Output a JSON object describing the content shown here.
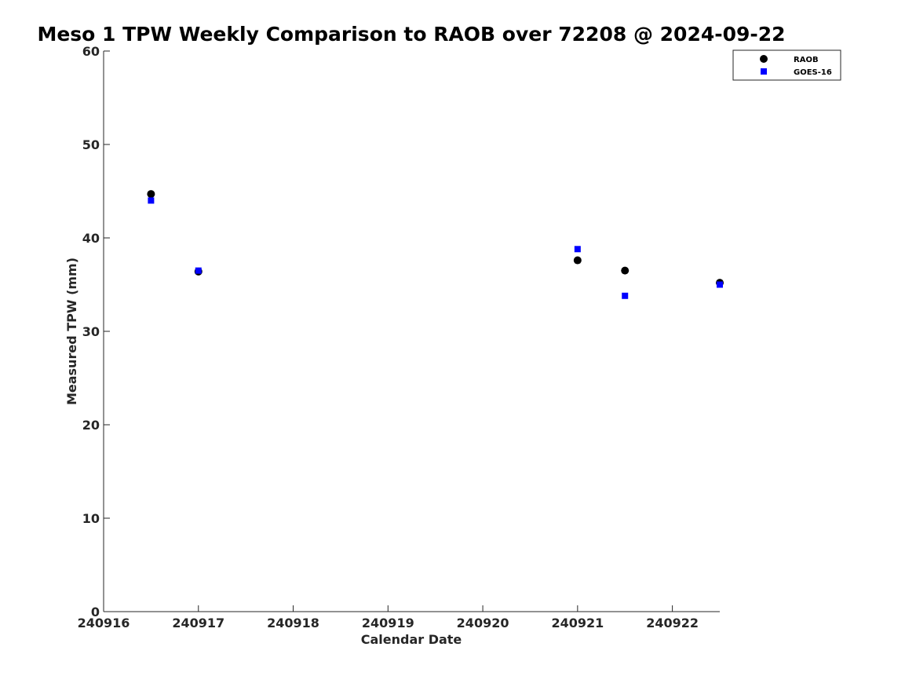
{
  "chart_data": {
    "type": "scatter",
    "title": "Meso 1 TPW Weekly Comparison to RAOB over 72208 @ 2024-09-22",
    "xlabel": "Calendar Date",
    "ylabel": "Measured TPW (mm)",
    "xlim": [
      "2024-09-16",
      "2024-09-22 12:00"
    ],
    "ylim": [
      0,
      60
    ],
    "x_ticks": [
      "240916",
      "240917",
      "240918",
      "240919",
      "240920",
      "240921",
      "240922"
    ],
    "y_ticks": [
      "0",
      "10",
      "20",
      "30",
      "40",
      "50",
      "60"
    ],
    "grid": false,
    "legend_position": "top-right",
    "series": [
      {
        "name": "RAOB",
        "marker": "circle",
        "color": "#000000",
        "x": [
          "2024-09-16 12:00",
          "2024-09-17 00:00",
          "2024-09-21 00:00",
          "2024-09-21 12:00",
          "2024-09-22 12:00"
        ],
        "y": [
          44.7,
          36.4,
          37.6,
          36.5,
          35.2
        ]
      },
      {
        "name": "GOES-16",
        "marker": "square",
        "color": "#0000ff",
        "x": [
          "2024-09-16 12:00",
          "2024-09-17 00:00",
          "2024-09-21 00:00",
          "2024-09-21 12:00",
          "2024-09-22 12:00"
        ],
        "y": [
          44.0,
          36.5,
          38.8,
          33.8,
          35.0
        ]
      }
    ]
  }
}
